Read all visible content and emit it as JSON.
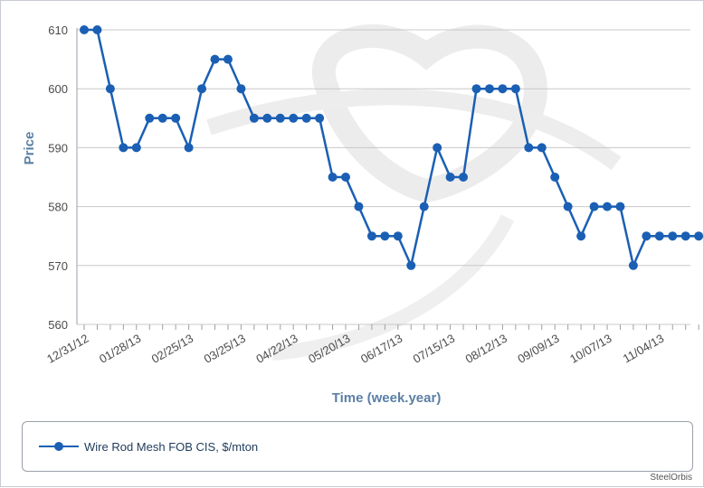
{
  "colors": {
    "series": "#1a5fb4",
    "grid": "#c8c8c8",
    "axis_text": "#4a4a4a",
    "axis_title": "#5b7fa5",
    "watermark": "#e8e8e8"
  },
  "legend": {
    "label": "Wire Rod Mesh FOB CIS, $/mton",
    "icon": "line-marker-icon"
  },
  "credit": "SteelOrbis",
  "chart_data": {
    "type": "line",
    "title": "",
    "xlabel": "Time (week.year)",
    "ylabel": "Price",
    "ylim": [
      560,
      610
    ],
    "yticks": [
      560,
      570,
      580,
      590,
      600,
      610
    ],
    "grid": true,
    "legend_position": "bottom",
    "x_tick_labels": [
      "12/31/12",
      "01/28/13",
      "02/25/13",
      "03/25/13",
      "04/22/13",
      "05/20/13",
      "06/17/13",
      "07/15/13",
      "08/12/13",
      "09/09/13",
      "10/07/13",
      "11/04/13"
    ],
    "x": [
      "12/31/12",
      "01/07/13",
      "01/14/13",
      "01/21/13",
      "01/28/13",
      "02/04/13",
      "02/11/13",
      "02/18/13",
      "02/25/13",
      "03/04/13",
      "03/11/13",
      "03/18/13",
      "03/25/13",
      "04/01/13",
      "04/08/13",
      "04/15/13",
      "04/22/13",
      "04/29/13",
      "05/06/13",
      "05/13/13",
      "05/20/13",
      "05/27/13",
      "06/03/13",
      "06/10/13",
      "06/17/13",
      "06/24/13",
      "07/01/13",
      "07/08/13",
      "07/15/13",
      "07/22/13",
      "07/29/13",
      "08/05/13",
      "08/12/13",
      "08/19/13",
      "08/26/13",
      "09/02/13",
      "09/09/13",
      "09/16/13",
      "09/23/13",
      "09/30/13",
      "10/07/13",
      "10/14/13",
      "10/21/13",
      "10/28/13",
      "11/04/13",
      "11/11/13",
      "11/18/13",
      "11/25/13"
    ],
    "series": [
      {
        "name": "Wire Rod Mesh FOB CIS, $/mton",
        "values": [
          610,
          610,
          600,
          590,
          590,
          595,
          595,
          595,
          590,
          600,
          605,
          605,
          600,
          595,
          595,
          595,
          595,
          595,
          595,
          585,
          585,
          580,
          575,
          575,
          575,
          570,
          580,
          590,
          585,
          585,
          600,
          600,
          600,
          600,
          590,
          590,
          585,
          580,
          575,
          580,
          580,
          580,
          570,
          575,
          575,
          575,
          575,
          575
        ]
      }
    ]
  }
}
